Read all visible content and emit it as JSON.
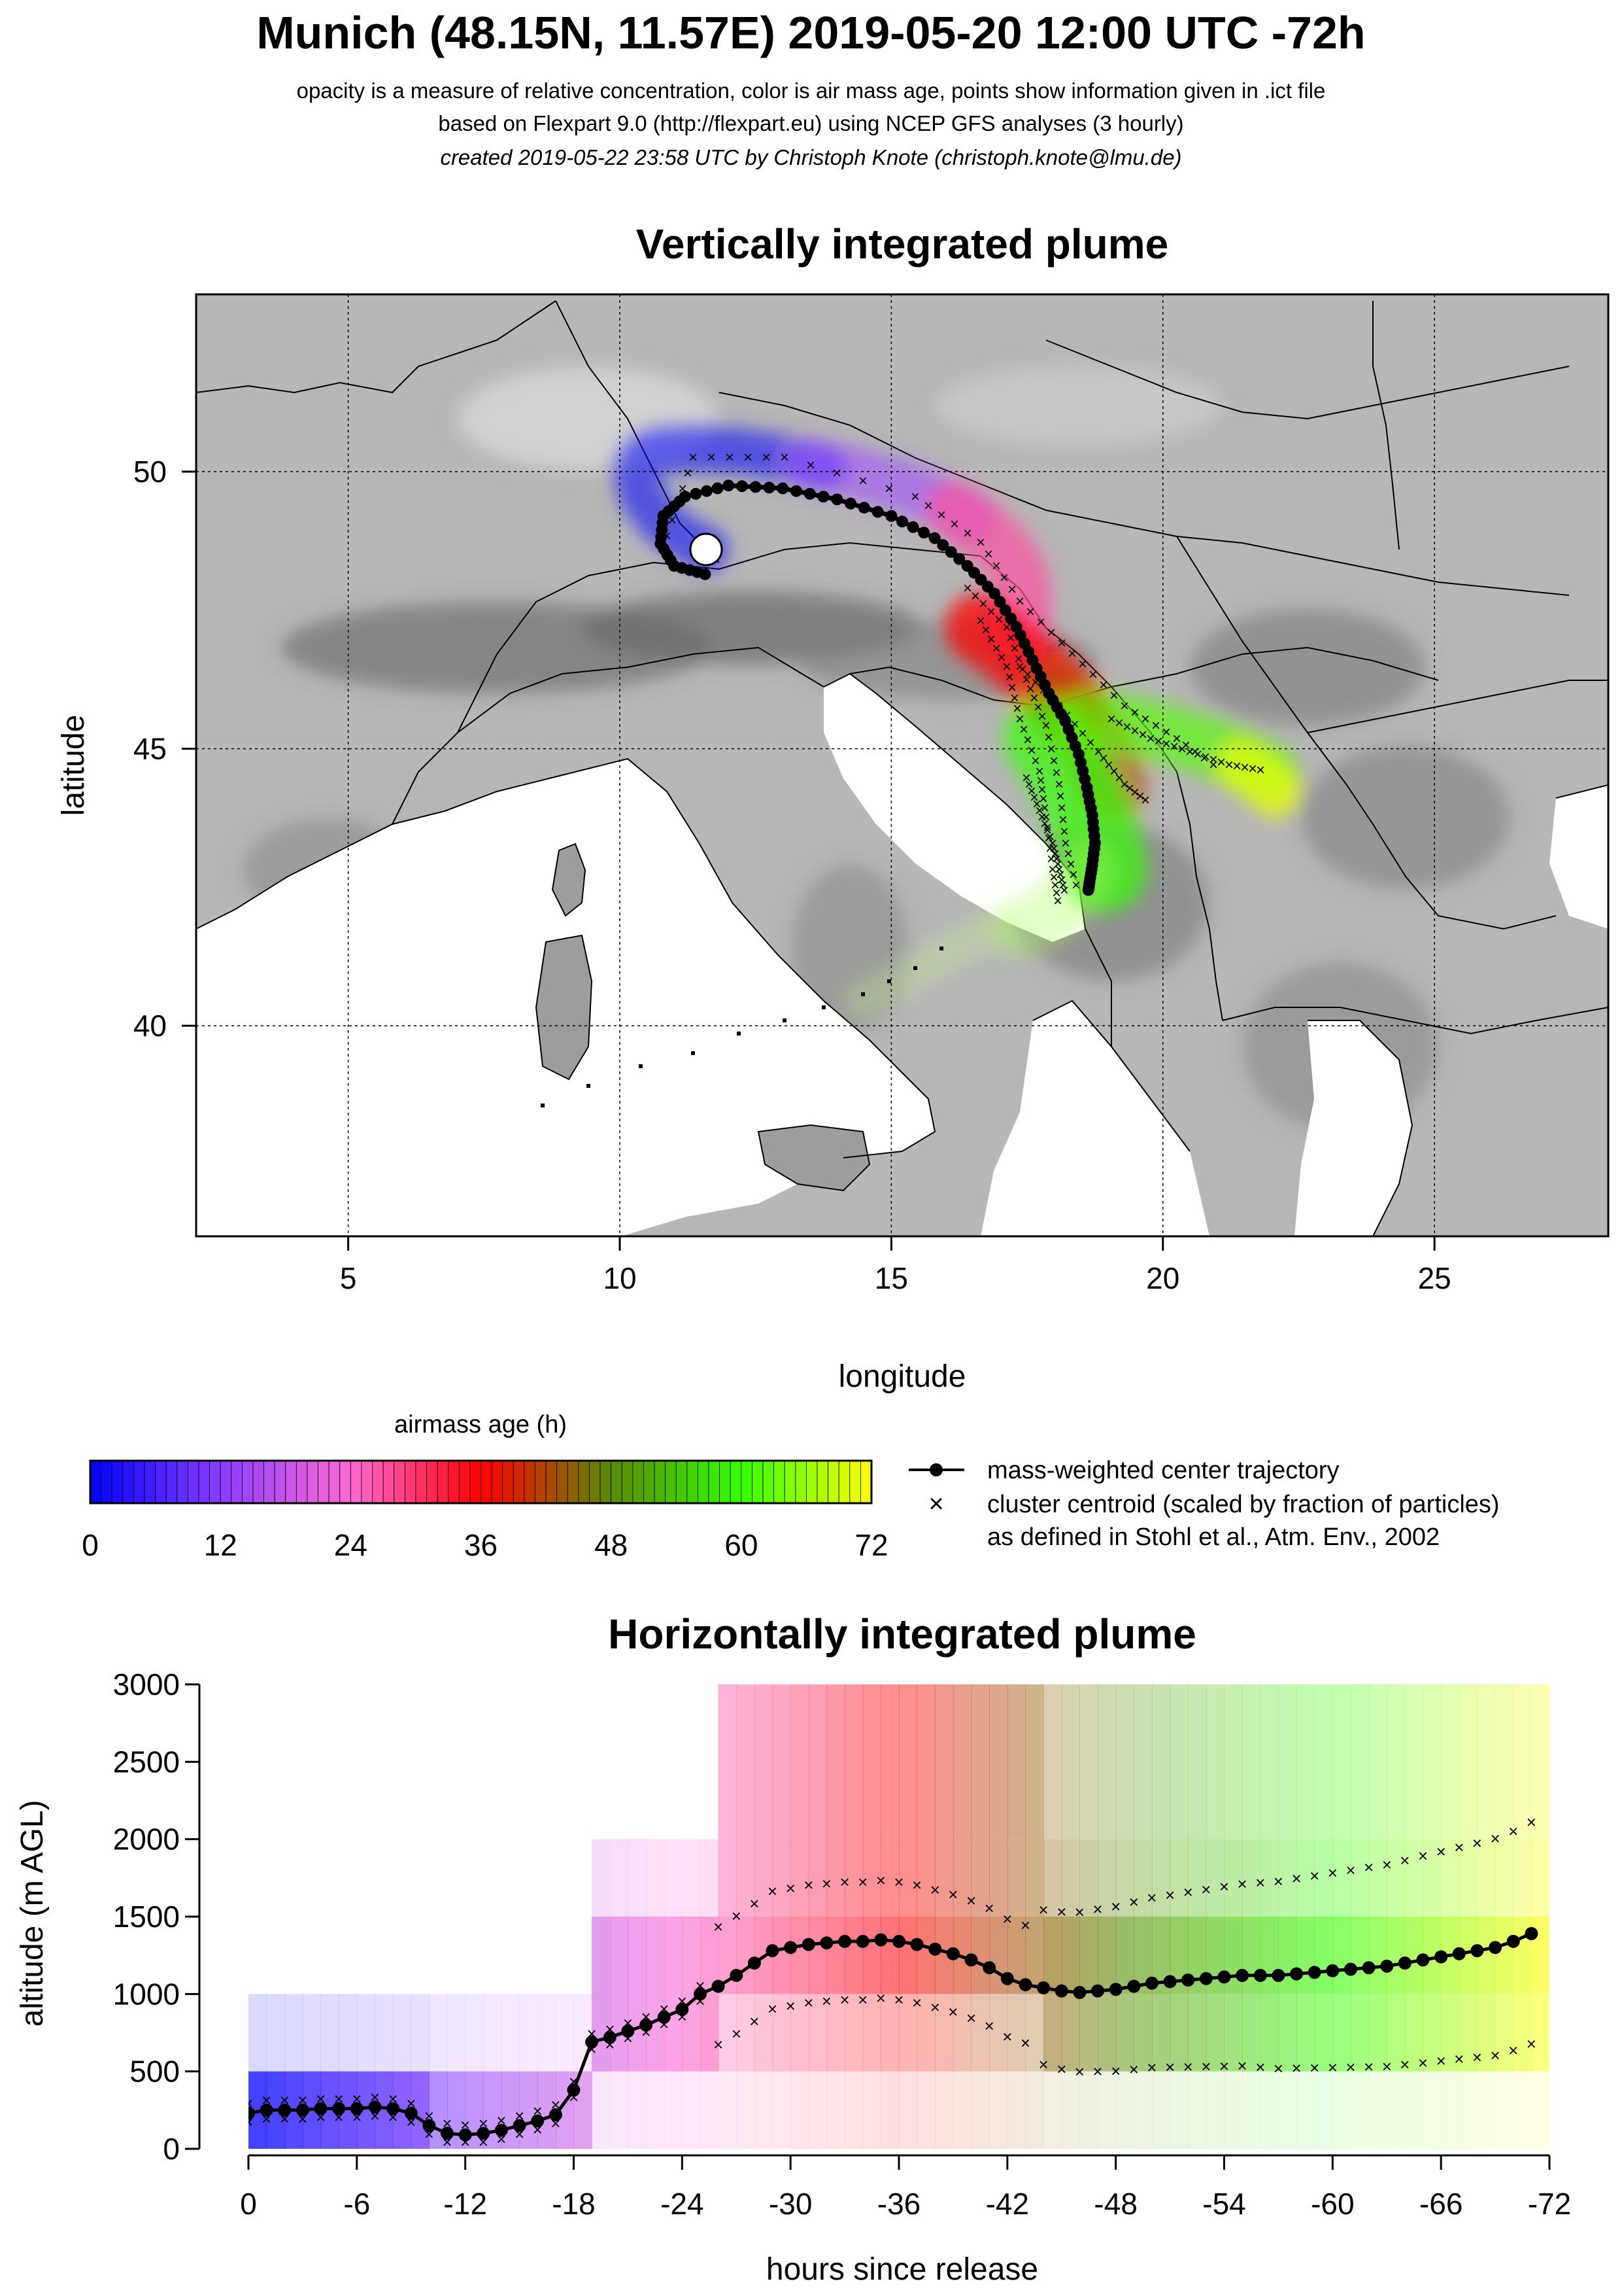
{
  "header": {
    "title": "Munich (48.15N, 11.57E) 2019-05-20 12:00 UTC -72h",
    "line1": "opacity is a measure of relative concentration, color is air mass age, points show information given in .ict file",
    "line2": "based on Flexpart 9.0 (http://flexpart.eu) using NCEP GFS analyses (3 hourly)",
    "line3": "created 2019-05-22 23:58 UTC by Christoph Knote (christoph.knote@lmu.de)"
  },
  "colors": {
    "age0": "#0000ff",
    "age12": "#8a3cff",
    "age24": "#ff6ad5",
    "age36": "#ff0000",
    "age48": "#5a8a00",
    "age60": "#33ff00",
    "age72": "#ffff00",
    "terrain": "#8c8c8c",
    "sea": "#ffffff"
  },
  "map": {
    "title": "Vertically integrated plume",
    "xlabel": "longitude",
    "ylabel": "latitude",
    "xticks": [
      "5",
      "10",
      "15",
      "20",
      "25"
    ],
    "yticks": [
      "40",
      "45",
      "50"
    ],
    "release_site": {
      "lon": 11.57,
      "lat": 48.15
    }
  },
  "legend": {
    "colorbar_title": "airmass age (h)",
    "colorbar_ticks": [
      "0",
      "12",
      "24",
      "36",
      "48",
      "60",
      "72"
    ],
    "center_label": "mass-weighted center trajectory",
    "cluster_label": "cluster centroid (scaled by fraction of particles)",
    "cluster_note": "as defined in Stohl et al., Atm. Env., 2002"
  },
  "profile": {
    "title": "Horizontally integrated plume",
    "xlabel": "hours since release",
    "ylabel": "altitude (m AGL)",
    "xticks": [
      "0",
      "-6",
      "-12",
      "-18",
      "-24",
      "-30",
      "-36",
      "-42",
      "-48",
      "-54",
      "-60",
      "-66",
      "-72"
    ],
    "yticks": [
      "0",
      "500",
      "1000",
      "1500",
      "2000",
      "2500",
      "3000"
    ]
  },
  "chart_data": [
    {
      "type": "scatter",
      "title": "Vertically integrated plume",
      "xlabel": "longitude",
      "ylabel": "latitude",
      "xlim": [
        2.2,
        28.2
      ],
      "ylim": [
        36.2,
        53.2
      ],
      "grid": true,
      "series": [
        {
          "name": "mass-weighted center trajectory",
          "x": [
            11.57,
            11.0,
            10.75,
            10.8,
            11.2,
            12.0,
            13.0,
            14.0,
            15.0,
            15.8,
            16.4,
            16.9,
            17.3,
            17.6,
            17.9,
            18.2,
            18.45,
            18.6,
            18.7,
            18.75,
            18.7,
            18.65,
            18.62
          ],
          "y": [
            48.15,
            48.3,
            48.7,
            49.2,
            49.55,
            49.75,
            49.7,
            49.5,
            49.2,
            48.8,
            48.3,
            47.8,
            47.2,
            46.6,
            46.0,
            45.5,
            44.9,
            44.3,
            43.8,
            43.3,
            42.9,
            42.6,
            42.4
          ]
        }
      ]
    },
    {
      "type": "line",
      "title": "Horizontally integrated plume",
      "xlabel": "hours since release",
      "ylabel": "altitude (m AGL)",
      "xlim": [
        0,
        -72
      ],
      "ylim": [
        0,
        3000
      ],
      "series": [
        {
          "name": "mass-weighted center trajectory",
          "x": [
            0,
            -1,
            -2,
            -3,
            -4,
            -5,
            -6,
            -7,
            -8,
            -9,
            -10,
            -11,
            -12,
            -13,
            -14,
            -15,
            -16,
            -17,
            -18,
            -19,
            -20,
            -21,
            -22,
            -23,
            -24,
            -25,
            -26,
            -27,
            -28,
            -29,
            -30,
            -31,
            -32,
            -33,
            -34,
            -35,
            -36,
            -37,
            -38,
            -39,
            -40,
            -41,
            -42,
            -43,
            -44,
            -45,
            -46,
            -47,
            -48,
            -49,
            -50,
            -51,
            -52,
            -53,
            -54,
            -55,
            -56,
            -57,
            -58,
            -59,
            -60,
            -61,
            -62,
            -63,
            -64,
            -65,
            -66,
            -67,
            -68,
            -69,
            -70,
            -71
          ],
          "y": [
            230,
            250,
            250,
            250,
            260,
            260,
            260,
            270,
            260,
            230,
            150,
            100,
            90,
            100,
            120,
            150,
            180,
            220,
            380,
            690,
            720,
            760,
            800,
            850,
            900,
            1000,
            1050,
            1120,
            1200,
            1280,
            1300,
            1320,
            1330,
            1340,
            1340,
            1350,
            1340,
            1320,
            1290,
            1260,
            1220,
            1170,
            1100,
            1060,
            1040,
            1020,
            1010,
            1020,
            1030,
            1050,
            1070,
            1080,
            1090,
            1100,
            1110,
            1120,
            1120,
            1120,
            1130,
            1140,
            1150,
            1160,
            1170,
            1180,
            1200,
            1220,
            1240,
            1260,
            1280,
            1300,
            1340,
            1390
          ]
        }
      ]
    }
  ]
}
